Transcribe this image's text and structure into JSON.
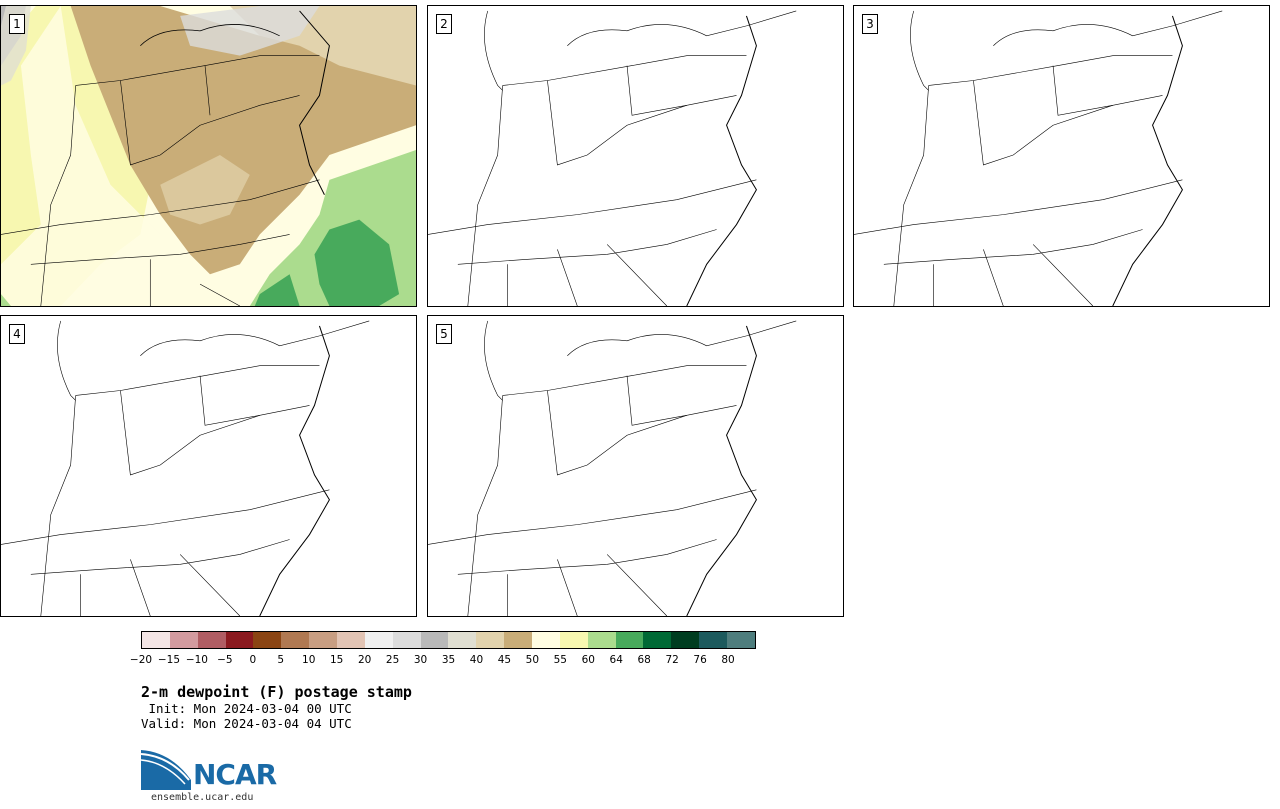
{
  "panels": [
    {
      "label": "1",
      "filled": true
    },
    {
      "label": "2",
      "filled": false
    },
    {
      "label": "3",
      "filled": false
    },
    {
      "label": "4",
      "filled": false
    },
    {
      "label": "5",
      "filled": false
    }
  ],
  "colorbar": {
    "colors": [
      "#f3e5e5",
      "#d39b9f",
      "#b05d63",
      "#8b1a1f",
      "#8b4513",
      "#b07952",
      "#c89e82",
      "#e2c4b4",
      "#f0f0f0",
      "#dcdcdc",
      "#b9b9b9",
      "#e0dfd2",
      "#e2d3ad",
      "#c9ad78",
      "#fffde2",
      "#f7f7b0",
      "#abdc8e",
      "#48aa5c",
      "#006935",
      "#003d20",
      "#1c5a5d",
      "#4e7d7d"
    ],
    "tick_labels": [
      "−20",
      "−15",
      "−10",
      "−5",
      "0",
      "5",
      "10",
      "15",
      "20",
      "25",
      "30",
      "35",
      "40",
      "45",
      "50",
      "55",
      "60",
      "64",
      "68",
      "72",
      "76",
      "80"
    ]
  },
  "title": "2-m dewpoint (F) postage stamp",
  "init": " Init: Mon 2024-03-04 00 UTC",
  "valid": "Valid: Mon 2024-03-04 04 UTC",
  "logo": {
    "text": "NCAR",
    "url": "ensemble.ucar.edu"
  }
}
